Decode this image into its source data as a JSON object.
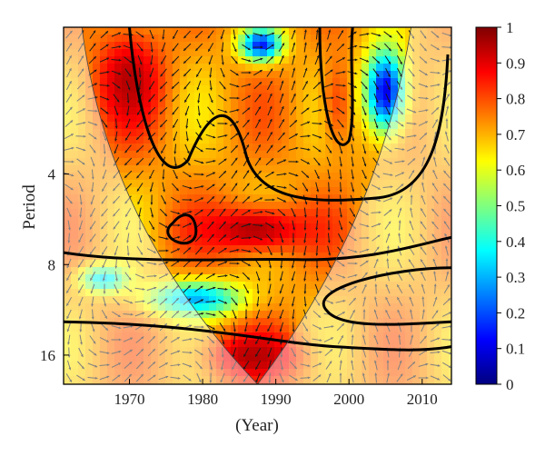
{
  "chart_data": {
    "type": "heatmap",
    "title": "",
    "xlabel": "(Year)",
    "ylabel": "Period",
    "x_range": [
      1961,
      2014
    ],
    "x_ticks": [
      1970,
      1980,
      1990,
      2000,
      2010
    ],
    "y_scale": "log2",
    "y_range": [
      1.3,
      20
    ],
    "y_ticks": [
      4,
      8,
      16
    ],
    "colorbar": {
      "range": [
        0,
        1
      ],
      "ticks": [
        "0",
        "0.1",
        "0.2",
        "0.3",
        "0.4",
        "0.5",
        "0.6",
        "0.7",
        "0.8",
        "0.9",
        "1"
      ],
      "colormap": "jet"
    },
    "grid": false,
    "legend": "none",
    "cone_of_influence": true,
    "significance_contours": true,
    "phase_arrows": true,
    "high_coherence_regions": [
      {
        "year_span": [
          1965,
          1975
        ],
        "period_span": [
          1.3,
          3
        ],
        "level": 0.95
      },
      {
        "year_span": [
          1978,
          1996
        ],
        "period_span": [
          5,
          7.5
        ],
        "level": 0.95
      },
      {
        "year_span": [
          1980,
          1994
        ],
        "period_span": [
          13,
          20
        ],
        "level": 0.95
      },
      {
        "year_span": [
          1996,
          2001
        ],
        "period_span": [
          1.5,
          3.5
        ],
        "level": 0.8
      }
    ],
    "low_coherence_regions": [
      {
        "year_span": [
          2002,
          2008
        ],
        "period_span": [
          1.5,
          3
        ],
        "level": 0.1
      },
      {
        "year_span": [
          1972,
          1986
        ],
        "period_span": [
          9,
          12
        ],
        "level": 0.3
      },
      {
        "year_span": [
          1985,
          1991
        ],
        "period_span": [
          1.3,
          1.7
        ],
        "level": 0.15
      },
      {
        "year_span": [
          1963,
          1970
        ],
        "period_span": [
          8,
          10
        ],
        "level": 0.35
      }
    ]
  },
  "colors": {
    "coi_overlay": "#ffffff",
    "contour": "#000000",
    "arrow": "#1a1a1a",
    "frame": "#000000"
  }
}
